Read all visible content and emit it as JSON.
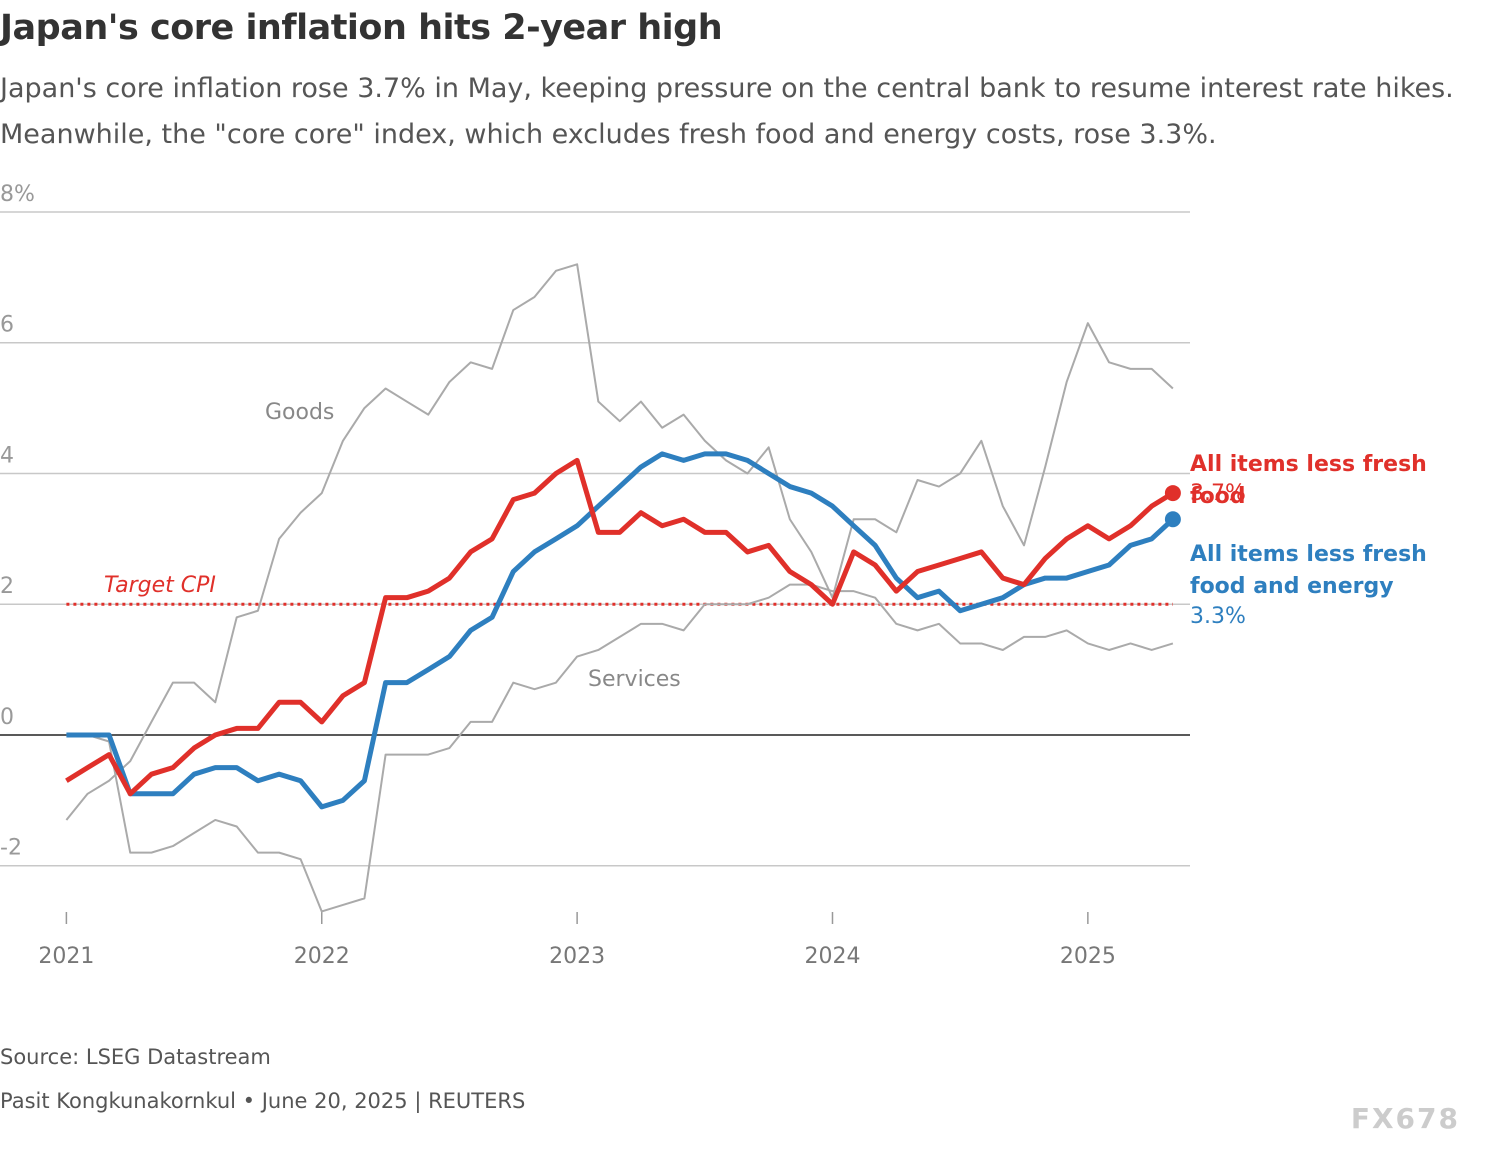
{
  "chart_data": {
    "type": "line",
    "title": "Japan's core inflation hits 2-year high",
    "subtitle": "Japan's core inflation rose 3.7% in May, keeping pressure on the central bank to resume interest rate hikes. Meanwhile, the \"core core\" index, which excludes fresh food and energy costs, rose 3.3%.",
    "source": "Source: LSEG Datastream",
    "byline": "Pasit Kongkunakornkul • June 20, 2025 | REUTERS",
    "watermark": "FX678",
    "x": [
      2021,
      2021.083,
      2021.167,
      2021.25,
      2021.333,
      2021.417,
      2021.5,
      2021.583,
      2021.667,
      2021.75,
      2021.833,
      2021.917,
      2022,
      2022.083,
      2022.167,
      2022.25,
      2022.333,
      2022.417,
      2022.5,
      2022.583,
      2022.667,
      2022.75,
      2022.833,
      2022.917,
      2023,
      2023.083,
      2023.167,
      2023.25,
      2023.333,
      2023.417,
      2023.5,
      2023.583,
      2023.667,
      2023.75,
      2023.833,
      2023.917,
      2024,
      2024.083,
      2024.167,
      2024.25,
      2024.333,
      2024.417,
      2024.5,
      2024.583,
      2024.667,
      2024.75,
      2024.833,
      2024.917,
      2025,
      2025.083,
      2025.167,
      2025.25,
      2025.333
    ],
    "xlim": [
      2020.74,
      2025.4
    ],
    "xticks": [
      2021,
      2022,
      2023,
      2024,
      2025
    ],
    "ylim": [
      -2.8,
      8
    ],
    "yticks": [
      -2,
      0,
      2,
      4,
      6,
      {
        "value": 8,
        "label": "8%"
      }
    ],
    "grid": true,
    "reference_line": {
      "label": "Target CPI",
      "value": 2,
      "color": "#e0302a"
    },
    "series": [
      {
        "name": "Goods",
        "color": "#aaaaaa",
        "values": [
          -1.3,
          -0.9,
          -0.7,
          -0.4,
          0.2,
          0.8,
          0.8,
          0.5,
          1.8,
          1.9,
          3.0,
          3.4,
          3.7,
          4.5,
          5.0,
          5.3,
          5.1,
          4.9,
          5.4,
          5.7,
          5.6,
          6.5,
          6.7,
          7.1,
          7.2,
          5.1,
          4.8,
          5.1,
          4.7,
          4.9,
          4.5,
          4.2,
          4.0,
          4.4,
          3.3,
          2.8,
          2.1,
          3.3,
          3.3,
          3.1,
          3.9,
          3.8,
          4.0,
          4.5,
          3.5,
          2.9,
          4.1,
          5.4,
          6.3,
          5.7,
          5.6,
          5.6,
          5.3
        ]
      },
      {
        "name": "Services",
        "color": "#aaaaaa",
        "values": [
          0,
          0,
          -0.1,
          -1.8,
          -1.8,
          -1.7,
          -1.5,
          -1.3,
          -1.4,
          -1.8,
          -1.8,
          -1.9,
          -2.7,
          -2.6,
          -2.5,
          -0.3,
          -0.3,
          -0.3,
          -0.2,
          0.2,
          0.2,
          0.8,
          0.7,
          0.8,
          1.2,
          1.3,
          1.5,
          1.7,
          1.7,
          1.6,
          2.0,
          2.0,
          2.0,
          2.1,
          2.3,
          2.3,
          2.2,
          2.2,
          2.1,
          1.7,
          1.6,
          1.7,
          1.4,
          1.4,
          1.3,
          1.5,
          1.5,
          1.6,
          1.4,
          1.3,
          1.4,
          1.3,
          1.4
        ]
      },
      {
        "name": "All items less fresh food and energy",
        "color": "#2e7fbf",
        "values": [
          0,
          0,
          0,
          -0.9,
          -0.9,
          -0.9,
          -0.6,
          -0.5,
          -0.5,
          -0.7,
          -0.6,
          -0.7,
          -1.1,
          -1.0,
          -0.7,
          0.8,
          0.8,
          1.0,
          1.2,
          1.6,
          1.8,
          2.5,
          2.8,
          3.0,
          3.2,
          3.5,
          3.8,
          4.1,
          4.3,
          4.2,
          4.3,
          4.3,
          4.2,
          4.0,
          3.8,
          3.7,
          3.5,
          3.2,
          2.9,
          2.4,
          2.1,
          2.2,
          1.9,
          2.0,
          2.1,
          2.3,
          2.4,
          2.4,
          2.5,
          2.6,
          2.9,
          3.0,
          3.3
        ],
        "value_labels": [
          null,
          null,
          null,
          null,
          null,
          null,
          null,
          null,
          null,
          null,
          null,
          null,
          null,
          null,
          null,
          null,
          null,
          null,
          null,
          null,
          null,
          null,
          null,
          null,
          null,
          null,
          null,
          null,
          null,
          null,
          null,
          null,
          null,
          null,
          null,
          null,
          null,
          null,
          null,
          null,
          null,
          null,
          null,
          null,
          null,
          null,
          null,
          null,
          null,
          null,
          null,
          null,
          "3.3%"
        ]
      },
      {
        "name": "All items less fresh food",
        "color": "#e0302a",
        "values": [
          -0.7,
          -0.5,
          -0.3,
          -0.9,
          -0.6,
          -0.5,
          -0.2,
          0,
          0.1,
          0.1,
          0.5,
          0.5,
          0.2,
          0.6,
          0.8,
          2.1,
          2.1,
          2.2,
          2.4,
          2.8,
          3.0,
          3.6,
          3.7,
          4.0,
          4.2,
          3.1,
          3.1,
          3.4,
          3.2,
          3.3,
          3.1,
          3.1,
          2.8,
          2.9,
          2.5,
          2.3,
          2.0,
          2.8,
          2.6,
          2.2,
          2.5,
          2.6,
          2.7,
          2.8,
          2.4,
          2.3,
          2.7,
          3.0,
          3.2,
          3.0,
          3.2,
          3.5,
          3.7
        ],
        "value_labels": [
          null,
          null,
          null,
          null,
          null,
          null,
          null,
          null,
          null,
          null,
          null,
          null,
          null,
          null,
          null,
          null,
          null,
          null,
          null,
          null,
          null,
          null,
          null,
          null,
          null,
          null,
          null,
          null,
          null,
          null,
          null,
          null,
          null,
          null,
          null,
          null,
          null,
          null,
          null,
          null,
          null,
          null,
          null,
          null,
          null,
          null,
          null,
          null,
          null,
          null,
          null,
          null,
          "3.7%"
        ]
      }
    ]
  }
}
